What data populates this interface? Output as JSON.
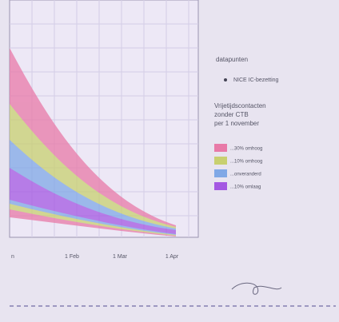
{
  "x_axis": {
    "labels": [
      "n",
      "1 Feb",
      "1 Mar",
      "1 Apr"
    ]
  },
  "legend": {
    "points_title": "datapunten",
    "points_item": "NICE IC-bezetting",
    "scenario_title": [
      "Vrijetijdscontacten",
      "zonder CTB",
      "per 1 november"
    ],
    "scenarios": [
      "...30% omhoog",
      "...10% omhoog",
      "...onveranderd",
      "...10% omlaag"
    ]
  }
}
